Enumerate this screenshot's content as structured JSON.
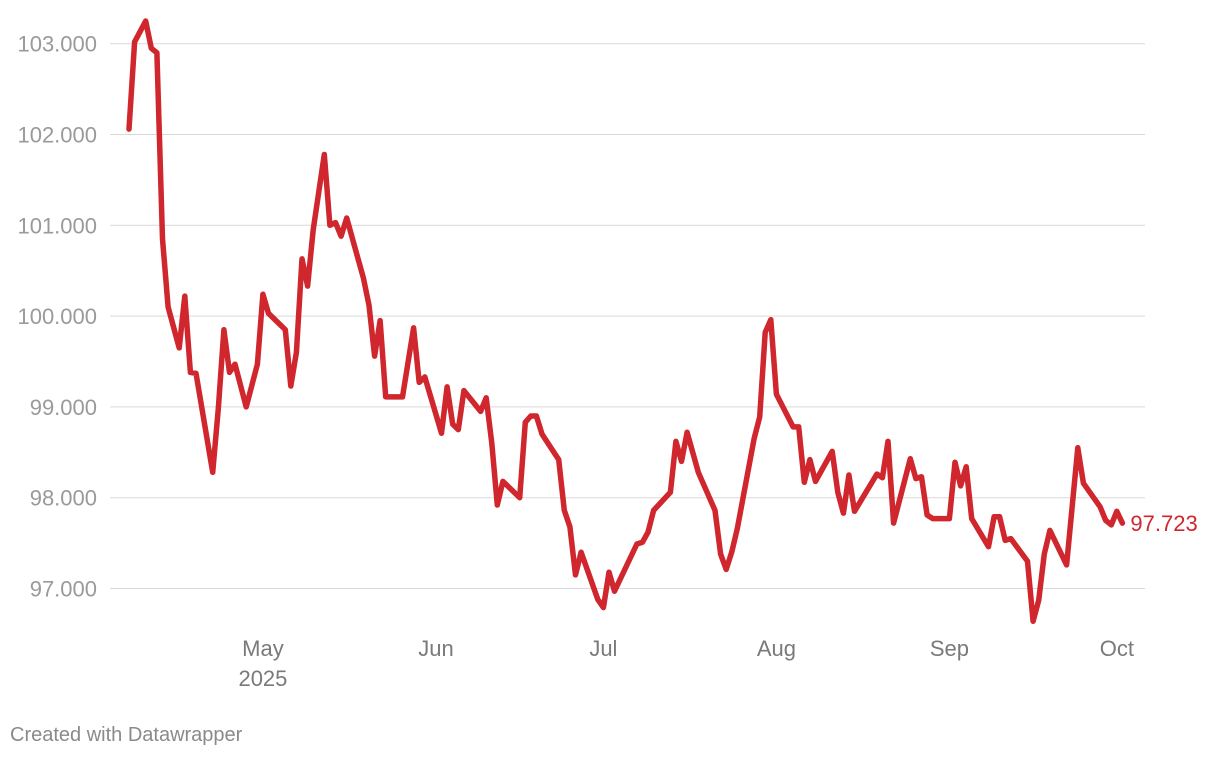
{
  "chart_data": {
    "type": "line",
    "title": "",
    "xlabel": "",
    "ylabel": "",
    "ylim": [
      96.5,
      103.3
    ],
    "xlim": [
      "2025-04-07",
      "2025-10-03"
    ],
    "grid": true,
    "legend": "none",
    "line_color": "#d0262d",
    "y_ticks": [
      {
        "value": 97,
        "label": "97.000"
      },
      {
        "value": 98,
        "label": "98.000"
      },
      {
        "value": 99,
        "label": "99.000"
      },
      {
        "value": 100,
        "label": "100.000"
      },
      {
        "value": 101,
        "label": "101.000"
      },
      {
        "value": 102,
        "label": "102.000"
      },
      {
        "value": 103,
        "label": "103.000"
      }
    ],
    "x_ticks": [
      {
        "date": "2025-05-01",
        "label": "May",
        "sublabel": "2025"
      },
      {
        "date": "2025-06-01",
        "label": "Jun",
        "sublabel": ""
      },
      {
        "date": "2025-07-01",
        "label": "Jul",
        "sublabel": ""
      },
      {
        "date": "2025-08-01",
        "label": "Aug",
        "sublabel": ""
      },
      {
        "date": "2025-09-01",
        "label": "Sep",
        "sublabel": ""
      },
      {
        "date": "2025-10-01",
        "label": "Oct",
        "sublabel": ""
      }
    ],
    "end_label": "97.723",
    "series": [
      {
        "points": [
          [
            "2025-04-07",
            102.06
          ],
          [
            "2025-04-08",
            103.02
          ],
          [
            "2025-04-10",
            103.25
          ],
          [
            "2025-04-11",
            102.95
          ],
          [
            "2025-04-12",
            102.9
          ],
          [
            "2025-04-13",
            100.85
          ],
          [
            "2025-04-14",
            100.1
          ],
          [
            "2025-04-16",
            99.65
          ],
          [
            "2025-04-17",
            100.22
          ],
          [
            "2025-04-18",
            99.38
          ],
          [
            "2025-04-19",
            99.37
          ],
          [
            "2025-04-22",
            98.28
          ],
          [
            "2025-04-23",
            98.98
          ],
          [
            "2025-04-24",
            99.85
          ],
          [
            "2025-04-25",
            99.38
          ],
          [
            "2025-04-26",
            99.47
          ],
          [
            "2025-04-28",
            99.0
          ],
          [
            "2025-04-30",
            99.47
          ],
          [
            "2025-05-01",
            100.24
          ],
          [
            "2025-05-02",
            100.03
          ],
          [
            "2025-05-05",
            99.85
          ],
          [
            "2025-05-06",
            99.23
          ],
          [
            "2025-05-07",
            99.6
          ],
          [
            "2025-05-08",
            100.63
          ],
          [
            "2025-05-09",
            100.33
          ],
          [
            "2025-05-10",
            100.95
          ],
          [
            "2025-05-12",
            101.78
          ],
          [
            "2025-05-13",
            101.0
          ],
          [
            "2025-05-14",
            101.03
          ],
          [
            "2025-05-15",
            100.88
          ],
          [
            "2025-05-16",
            101.08
          ],
          [
            "2025-05-19",
            100.42
          ],
          [
            "2025-05-20",
            100.12
          ],
          [
            "2025-05-21",
            99.56
          ],
          [
            "2025-05-22",
            99.95
          ],
          [
            "2025-05-23",
            99.11
          ],
          [
            "2025-05-26",
            99.11
          ],
          [
            "2025-05-28",
            99.87
          ],
          [
            "2025-05-29",
            99.27
          ],
          [
            "2025-05-30",
            99.33
          ],
          [
            "2025-06-02",
            98.71
          ],
          [
            "2025-06-03",
            99.22
          ],
          [
            "2025-06-04",
            98.81
          ],
          [
            "2025-06-05",
            98.75
          ],
          [
            "2025-06-06",
            99.18
          ],
          [
            "2025-06-09",
            98.95
          ],
          [
            "2025-06-10",
            99.1
          ],
          [
            "2025-06-11",
            98.6
          ],
          [
            "2025-06-12",
            97.92
          ],
          [
            "2025-06-13",
            98.18
          ],
          [
            "2025-06-16",
            98.0
          ],
          [
            "2025-06-17",
            98.83
          ],
          [
            "2025-06-18",
            98.9
          ],
          [
            "2025-06-19",
            98.9
          ],
          [
            "2025-06-20",
            98.7
          ],
          [
            "2025-06-23",
            98.42
          ],
          [
            "2025-06-24",
            97.86
          ],
          [
            "2025-06-25",
            97.68
          ],
          [
            "2025-06-26",
            97.15
          ],
          [
            "2025-06-27",
            97.4
          ],
          [
            "2025-06-30",
            96.88
          ],
          [
            "2025-07-01",
            96.79
          ],
          [
            "2025-07-02",
            97.18
          ],
          [
            "2025-07-03",
            96.97
          ],
          [
            "2025-07-07",
            97.49
          ],
          [
            "2025-07-08",
            97.51
          ],
          [
            "2025-07-09",
            97.62
          ],
          [
            "2025-07-10",
            97.86
          ],
          [
            "2025-07-13",
            98.06
          ],
          [
            "2025-07-14",
            98.62
          ],
          [
            "2025-07-15",
            98.4
          ],
          [
            "2025-07-16",
            98.72
          ],
          [
            "2025-07-18",
            98.28
          ],
          [
            "2025-07-21",
            97.86
          ],
          [
            "2025-07-22",
            97.38
          ],
          [
            "2025-07-23",
            97.21
          ],
          [
            "2025-07-24",
            97.4
          ],
          [
            "2025-07-25",
            97.66
          ],
          [
            "2025-07-28",
            98.65
          ],
          [
            "2025-07-29",
            98.89
          ],
          [
            "2025-07-30",
            99.82
          ],
          [
            "2025-07-31",
            99.96
          ],
          [
            "2025-08-01",
            99.14
          ],
          [
            "2025-08-04",
            98.78
          ],
          [
            "2025-08-05",
            98.78
          ],
          [
            "2025-08-06",
            98.17
          ],
          [
            "2025-08-07",
            98.42
          ],
          [
            "2025-08-08",
            98.18
          ],
          [
            "2025-08-11",
            98.51
          ],
          [
            "2025-08-12",
            98.06
          ],
          [
            "2025-08-13",
            97.83
          ],
          [
            "2025-08-14",
            98.25
          ],
          [
            "2025-08-15",
            97.85
          ],
          [
            "2025-08-19",
            98.26
          ],
          [
            "2025-08-20",
            98.22
          ],
          [
            "2025-08-21",
            98.62
          ],
          [
            "2025-08-22",
            97.72
          ],
          [
            "2025-08-25",
            98.43
          ],
          [
            "2025-08-26",
            98.21
          ],
          [
            "2025-08-27",
            98.23
          ],
          [
            "2025-08-28",
            97.81
          ],
          [
            "2025-08-29",
            97.77
          ],
          [
            "2025-09-01",
            97.77
          ],
          [
            "2025-09-02",
            98.39
          ],
          [
            "2025-09-03",
            98.13
          ],
          [
            "2025-09-04",
            98.34
          ],
          [
            "2025-09-05",
            97.77
          ],
          [
            "2025-09-08",
            97.46
          ],
          [
            "2025-09-09",
            97.79
          ],
          [
            "2025-09-10",
            97.79
          ],
          [
            "2025-09-11",
            97.53
          ],
          [
            "2025-09-12",
            97.55
          ],
          [
            "2025-09-15",
            97.3
          ],
          [
            "2025-09-16",
            96.64
          ],
          [
            "2025-09-17",
            96.87
          ],
          [
            "2025-09-18",
            97.38
          ],
          [
            "2025-09-19",
            97.64
          ],
          [
            "2025-09-22",
            97.26
          ],
          [
            "2025-09-24",
            98.55
          ],
          [
            "2025-09-25",
            98.16
          ],
          [
            "2025-09-28",
            97.9
          ],
          [
            "2025-09-29",
            97.75
          ],
          [
            "2025-09-30",
            97.7
          ],
          [
            "2025-10-01",
            97.85
          ],
          [
            "2025-10-02",
            97.72
          ]
        ]
      }
    ]
  },
  "footer": {
    "credit": "Created with Datawrapper"
  }
}
